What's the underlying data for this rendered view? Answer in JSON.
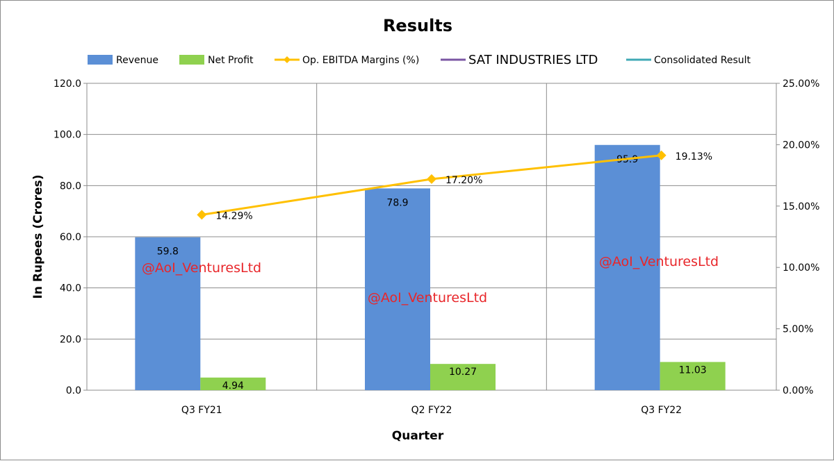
{
  "chart_data": {
    "type": "bar",
    "title": "Results",
    "xlabel": "Quarter",
    "ylabel": "In Rupees (Crores)",
    "categories": [
      "Q3 FY21",
      "Q2 FY22",
      "Q3 FY22"
    ],
    "ylim": [
      0,
      120
    ],
    "yticks": [
      "0.0",
      "20.0",
      "40.0",
      "60.0",
      "80.0",
      "100.0",
      "120.0"
    ],
    "y2lim": [
      0,
      25
    ],
    "y2ticks": [
      "0.00%",
      "5.00%",
      "10.00%",
      "15.00%",
      "20.00%",
      "25.00%"
    ],
    "grid": true,
    "legend_position": "top",
    "series": [
      {
        "name": "Revenue",
        "kind": "bar",
        "axis": "left",
        "color": "#5b8fd6",
        "values": [
          59.8,
          78.9,
          95.9
        ],
        "labels": [
          "59.8",
          "78.9",
          "95.9"
        ]
      },
      {
        "name": "Net Profit",
        "kind": "bar",
        "axis": "left",
        "color": "#8fd14f",
        "values": [
          4.94,
          10.27,
          11.03
        ],
        "labels": [
          "4.94",
          "10.27",
          "11.03"
        ]
      },
      {
        "name": "Op. EBITDA Margins (%)",
        "kind": "line",
        "axis": "right",
        "color": "#ffc000",
        "values": [
          14.29,
          17.2,
          19.13
        ],
        "labels": [
          "14.29%",
          "17.20%",
          "19.13%"
        ]
      }
    ],
    "legend_extra": [
      {
        "name": "SAT INDUSTRIES LTD",
        "color": "#7a55a3"
      },
      {
        "name": "Consolidated Result",
        "color": "#3fa9b5"
      }
    ],
    "watermark": "@AoI_VenturesLtd"
  }
}
